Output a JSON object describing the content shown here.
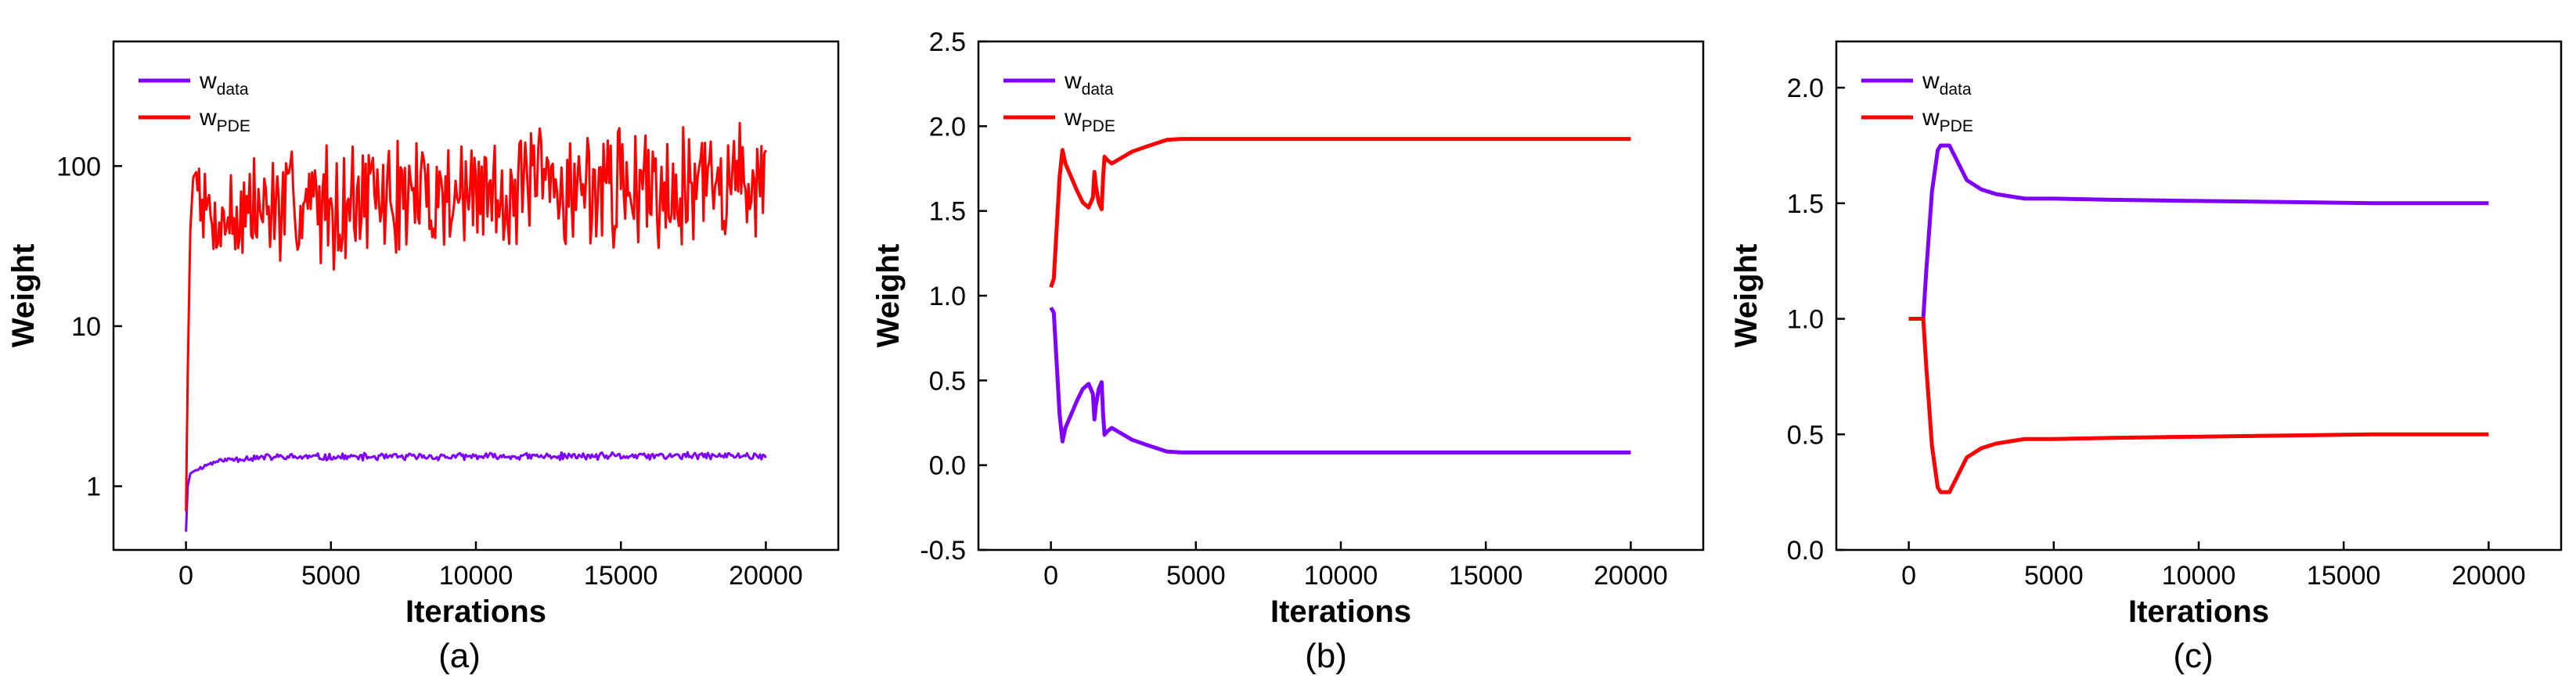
{
  "colors": {
    "w_data": "#8000ff",
    "w_PDE": "#ff0000",
    "axis": "#000000"
  },
  "chart_data": [
    {
      "type": "line",
      "panel_label": "(a)",
      "xlabel": "Iterations",
      "ylabel": "Weight",
      "xlim": [
        -2500,
        22500
      ],
      "ylim": [
        0.4,
        600
      ],
      "yscale": "log",
      "xticks": [
        0,
        5000,
        10000,
        15000,
        20000
      ],
      "xtick_labels": [
        "0",
        "5000",
        "10000",
        "15000",
        "20000"
      ],
      "yticks": [
        1,
        10,
        100
      ],
      "ytick_labels": [
        "1",
        "10",
        "100"
      ],
      "legend": {
        "position": "top-left",
        "entries": [
          {
            "base": "w",
            "sub": "data"
          },
          {
            "base": "w",
            "sub": "PDE"
          }
        ]
      },
      "series": [
        {
          "name": "w_data",
          "color": "#8000ff",
          "noise": 0.06,
          "seed": 11,
          "x": [
            0,
            60,
            150,
            300,
            500,
            800,
            1200,
            2000,
            3000,
            5000,
            10000,
            15000,
            20000
          ],
          "y": [
            0.52,
            1.0,
            1.2,
            1.25,
            1.3,
            1.38,
            1.45,
            1.5,
            1.52,
            1.52,
            1.53,
            1.54,
            1.55
          ]
        },
        {
          "name": "w_PDE",
          "color": "#ff0000",
          "noise": 1.0,
          "seed": 7,
          "x": [
            0,
            60,
            150,
            250,
            400,
            600,
            1000,
            2000,
            3000,
            5000,
            8000,
            10000,
            12000,
            15000,
            18000,
            20000
          ],
          "y": [
            0.7,
            5,
            40,
            85,
            95,
            60,
            45,
            50,
            55,
            60,
            65,
            68,
            72,
            76,
            80,
            85
          ]
        }
      ]
    },
    {
      "type": "line",
      "panel_label": "(b)",
      "xlabel": "Iterations",
      "ylabel": "Weight",
      "xlim": [
        -2500,
        22500
      ],
      "ylim": [
        -0.5,
        2.5
      ],
      "xticks": [
        0,
        5000,
        10000,
        15000,
        20000
      ],
      "xtick_labels": [
        "0",
        "5000",
        "10000",
        "15000",
        "20000"
      ],
      "yticks": [
        -0.5,
        0.0,
        0.5,
        1.0,
        1.5,
        2.0,
        2.5
      ],
      "ytick_labels": [
        "-0.5",
        "0.0",
        "0.5",
        "1.0",
        "1.5",
        "2.0",
        "2.5"
      ],
      "legend": {
        "position": "top-left",
        "entries": [
          {
            "base": "w",
            "sub": "data"
          },
          {
            "base": "w",
            "sub": "PDE"
          }
        ]
      },
      "series": [
        {
          "name": "w_data",
          "color": "#8000ff",
          "x": [
            0,
            100,
            200,
            300,
            400,
            500,
            700,
            900,
            1100,
            1300,
            1450,
            1500,
            1550,
            1650,
            1750,
            1800,
            1850,
            1950,
            2100,
            2400,
            2800,
            3300,
            4000,
            4500,
            5000,
            10000,
            15000,
            20000
          ],
          "y": [
            0.93,
            0.9,
            0.6,
            0.3,
            0.14,
            0.22,
            0.3,
            0.38,
            0.45,
            0.48,
            0.42,
            0.27,
            0.35,
            0.45,
            0.49,
            0.3,
            0.18,
            0.2,
            0.22,
            0.19,
            0.15,
            0.12,
            0.08,
            0.075,
            0.075,
            0.075,
            0.075,
            0.075
          ]
        },
        {
          "name": "w_PDE",
          "color": "#ff0000",
          "x": [
            0,
            100,
            200,
            300,
            400,
            500,
            700,
            900,
            1100,
            1300,
            1450,
            1500,
            1550,
            1650,
            1750,
            1800,
            1850,
            1950,
            2100,
            2400,
            2800,
            3300,
            4000,
            4500,
            5000,
            10000,
            15000,
            20000
          ],
          "y": [
            1.05,
            1.1,
            1.4,
            1.7,
            1.86,
            1.78,
            1.7,
            1.62,
            1.55,
            1.52,
            1.58,
            1.73,
            1.65,
            1.55,
            1.51,
            1.7,
            1.82,
            1.8,
            1.78,
            1.81,
            1.85,
            1.88,
            1.92,
            1.925,
            1.925,
            1.925,
            1.925,
            1.925
          ]
        }
      ]
    },
    {
      "type": "line",
      "panel_label": "(c)",
      "xlabel": "Iterations",
      "ylabel": "Weight",
      "xlim": [
        -2500,
        22500
      ],
      "ylim": [
        0.0,
        2.2
      ],
      "xticks": [
        0,
        5000,
        10000,
        15000,
        20000
      ],
      "xtick_labels": [
        "0",
        "5000",
        "10000",
        "15000",
        "20000"
      ],
      "yticks": [
        0.0,
        0.5,
        1.0,
        1.5,
        2.0
      ],
      "ytick_labels": [
        "0.0",
        "0.5",
        "1.0",
        "1.5",
        "2.0"
      ],
      "legend": {
        "position": "top-left",
        "entries": [
          {
            "base": "w",
            "sub": "data"
          },
          {
            "base": "w",
            "sub": "PDE"
          }
        ]
      },
      "series": [
        {
          "name": "w_data",
          "color": "#8000ff",
          "x": [
            0,
            500,
            600,
            800,
            1000,
            1100,
            1400,
            1600,
            2000,
            2500,
            3000,
            3500,
            4000,
            5000,
            7000,
            10000,
            13000,
            16000,
            20000
          ],
          "y": [
            1.0,
            1.0,
            1.2,
            1.55,
            1.73,
            1.75,
            1.75,
            1.7,
            1.6,
            1.56,
            1.54,
            1.53,
            1.52,
            1.52,
            1.515,
            1.51,
            1.505,
            1.5,
            1.5
          ]
        },
        {
          "name": "w_PDE",
          "color": "#ff0000",
          "x": [
            0,
            500,
            600,
            800,
            1000,
            1100,
            1400,
            1600,
            2000,
            2500,
            3000,
            3500,
            4000,
            5000,
            7000,
            10000,
            13000,
            16000,
            20000
          ],
          "y": [
            1.0,
            1.0,
            0.8,
            0.45,
            0.27,
            0.25,
            0.25,
            0.3,
            0.4,
            0.44,
            0.46,
            0.47,
            0.48,
            0.48,
            0.485,
            0.49,
            0.495,
            0.5,
            0.5
          ]
        }
      ]
    }
  ]
}
